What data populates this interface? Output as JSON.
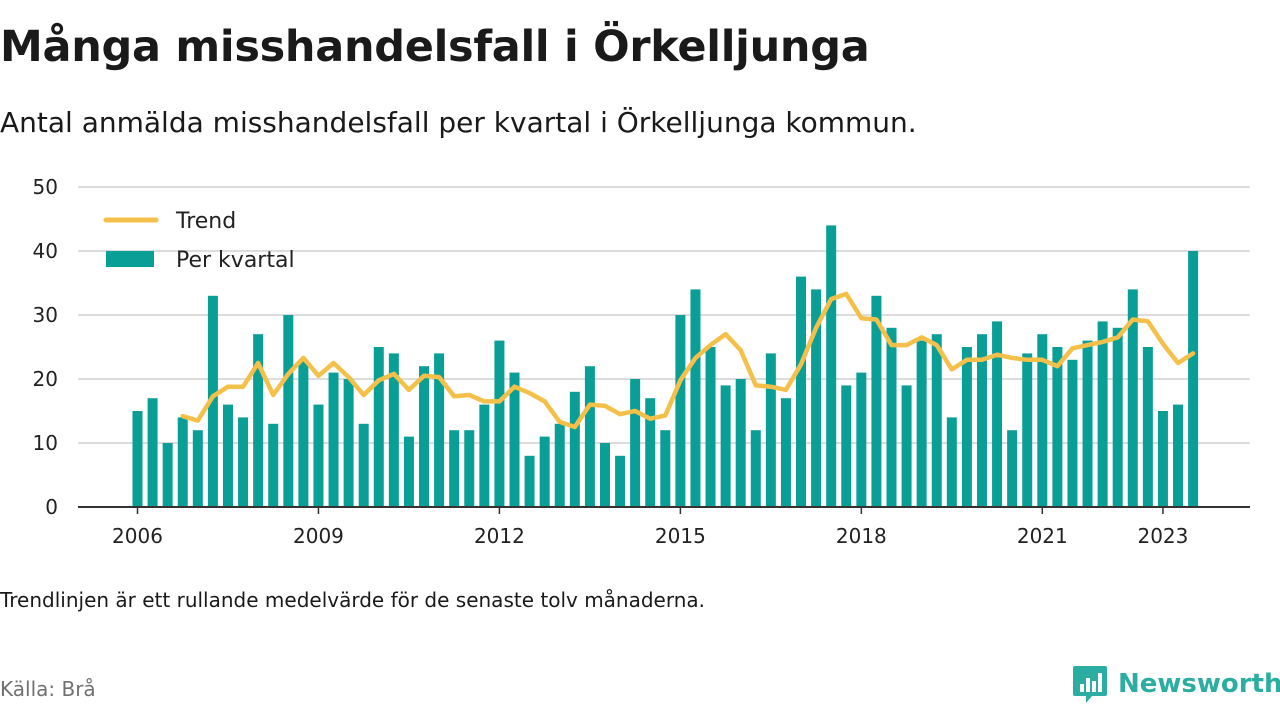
{
  "title": "Många misshandelsfall i Örkelljunga",
  "subtitle": "Antal anmälda misshandelsfall per kvartal i Örkelljunga kommun.",
  "footnote": "Trendlinjen är ett rullande medelvärde för de senaste tolv månaderna.",
  "source": "Källa: Brå",
  "brand": {
    "name": "Newsworthy",
    "icon": "newsworthy-logo-icon",
    "color": "#2bada1"
  },
  "chart_data": {
    "type": "bar",
    "x_start": "2006 Q1",
    "x_ticks": [
      "2006",
      "2009",
      "2012",
      "2015",
      "2018",
      "2021",
      "2023"
    ],
    "y_ticks": [
      0,
      10,
      20,
      30,
      40,
      50
    ],
    "ylim": [
      0,
      50
    ],
    "grid": true,
    "legend_position": "top-left",
    "series": [
      {
        "name": "Per kvartal",
        "kind": "bar",
        "color": "#0a9f96",
        "values": [
          15,
          17,
          10,
          14,
          12,
          33,
          16,
          14,
          27,
          13,
          30,
          23,
          16,
          21,
          20,
          13,
          25,
          24,
          11,
          22,
          24,
          12,
          12,
          16,
          26,
          21,
          8,
          11,
          13,
          18,
          22,
          10,
          8,
          20,
          17,
          12,
          30,
          34,
          25,
          19,
          20,
          12,
          24,
          17,
          36,
          34,
          44,
          19,
          21,
          33,
          28,
          19,
          26,
          27,
          14,
          25,
          27,
          29,
          12,
          24,
          27,
          25,
          23,
          26,
          29,
          28,
          34,
          25,
          15,
          16,
          40
        ]
      },
      {
        "name": "Trend",
        "kind": "line",
        "color": "#f5c04a",
        "values": [
          null,
          null,
          null,
          14.2,
          13.5,
          17.3,
          18.8,
          18.8,
          22.5,
          17.5,
          20.8,
          23.3,
          20.5,
          22.5,
          20.3,
          17.5,
          19.8,
          20.8,
          18.3,
          20.5,
          20.3,
          17.3,
          17.5,
          16.5,
          16.5,
          18.8,
          17.8,
          16.5,
          13.3,
          12.5,
          16.0,
          15.8,
          14.5,
          15.0,
          13.8,
          14.3,
          19.8,
          23.3,
          25.3,
          27.0,
          24.5,
          19.0,
          18.8,
          18.3,
          22.3,
          28.0,
          32.5,
          33.3,
          29.5,
          29.3,
          25.3,
          25.3,
          26.5,
          25.3,
          21.5,
          23.0,
          23.0,
          23.8,
          23.3,
          23.0,
          23.0,
          22.0,
          24.8,
          25.3,
          25.8,
          26.5,
          29.3,
          29.0,
          25.5,
          22.5,
          24.0
        ]
      }
    ]
  }
}
